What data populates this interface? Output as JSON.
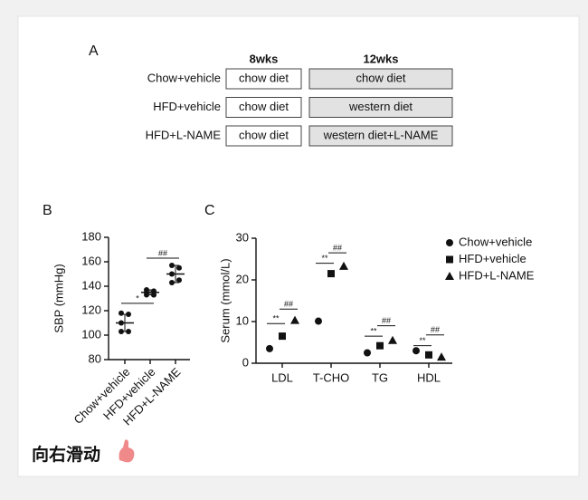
{
  "design": {
    "label": "A",
    "columns": [
      "8wks",
      "12wks"
    ],
    "rows": [
      [
        "Chow+vehicle",
        "chow diet",
        "chow diet"
      ],
      [
        "HFD+vehicle",
        "chow diet",
        "western diet"
      ],
      [
        "HFD+L-NAME",
        "chow diet",
        "western diet+L-NAME"
      ]
    ]
  },
  "chart_data": [
    {
      "type": "dot",
      "label": "B",
      "ylabel": "SBP (mmHg)",
      "categories": [
        "Chow+vehicle",
        "HFD+vehicle",
        "HFD+L-NAME"
      ],
      "points": [
        [
          118,
          117,
          110,
          103,
          103
        ],
        [
          137,
          136,
          135,
          133,
          133,
          133
        ],
        [
          157,
          155,
          150,
          145,
          143
        ]
      ],
      "means": [
        110,
        135,
        150
      ],
      "errors": [
        7,
        2,
        7
      ],
      "ylim": [
        80,
        180
      ],
      "yticks": [
        80,
        100,
        120,
        140,
        160,
        180
      ],
      "color": "#111111",
      "annotations": [
        {
          "text": "*",
          "from": 0,
          "to": 1,
          "y": 126
        },
        {
          "text": "##",
          "from": 1,
          "to": 2,
          "y": 163
        }
      ]
    },
    {
      "type": "grouped-dot",
      "label": "C",
      "ylabel": "Serum (mmol/L)",
      "categories": [
        "LDL",
        "T-CHO",
        "TG",
        "HDL"
      ],
      "series": [
        {
          "name": "Chow+vehicle",
          "marker": "circle",
          "color": "#111111",
          "values": [
            3.5,
            10.1,
            2.5,
            3.0
          ]
        },
        {
          "name": "HFD+vehicle",
          "marker": "square",
          "color": "#111111",
          "values": [
            6.5,
            21.5,
            4.2,
            2.0
          ]
        },
        {
          "name": "HFD+L-NAME",
          "marker": "triangle",
          "color": "#111111",
          "values": [
            10.3,
            23.3,
            5.5,
            1.5
          ]
        }
      ],
      "ylim": [
        0,
        30
      ],
      "yticks": [
        0,
        10,
        20,
        30
      ],
      "legend": "right",
      "annotations": [
        {
          "category": 0,
          "text": "**",
          "from": 0,
          "to": 1,
          "y": 9.5
        },
        {
          "category": 0,
          "text": "##",
          "from": 1,
          "to": 2,
          "y": 13
        },
        {
          "category": 1,
          "text": "**",
          "from": 0,
          "to": 1,
          "y": 24
        },
        {
          "category": 1,
          "text": "##",
          "from": 1,
          "to": 2,
          "y": 26.5
        },
        {
          "category": 2,
          "text": "**",
          "from": 0,
          "to": 1,
          "y": 6.5
        },
        {
          "category": 2,
          "text": "##",
          "from": 1,
          "to": 2,
          "y": 9
        },
        {
          "category": 3,
          "text": "**",
          "from": 0,
          "to": 1,
          "y": 4.2
        },
        {
          "category": 3,
          "text": "##",
          "from": 1,
          "to": 2,
          "y": 6.8
        }
      ]
    }
  ],
  "caption": "向右滑动"
}
